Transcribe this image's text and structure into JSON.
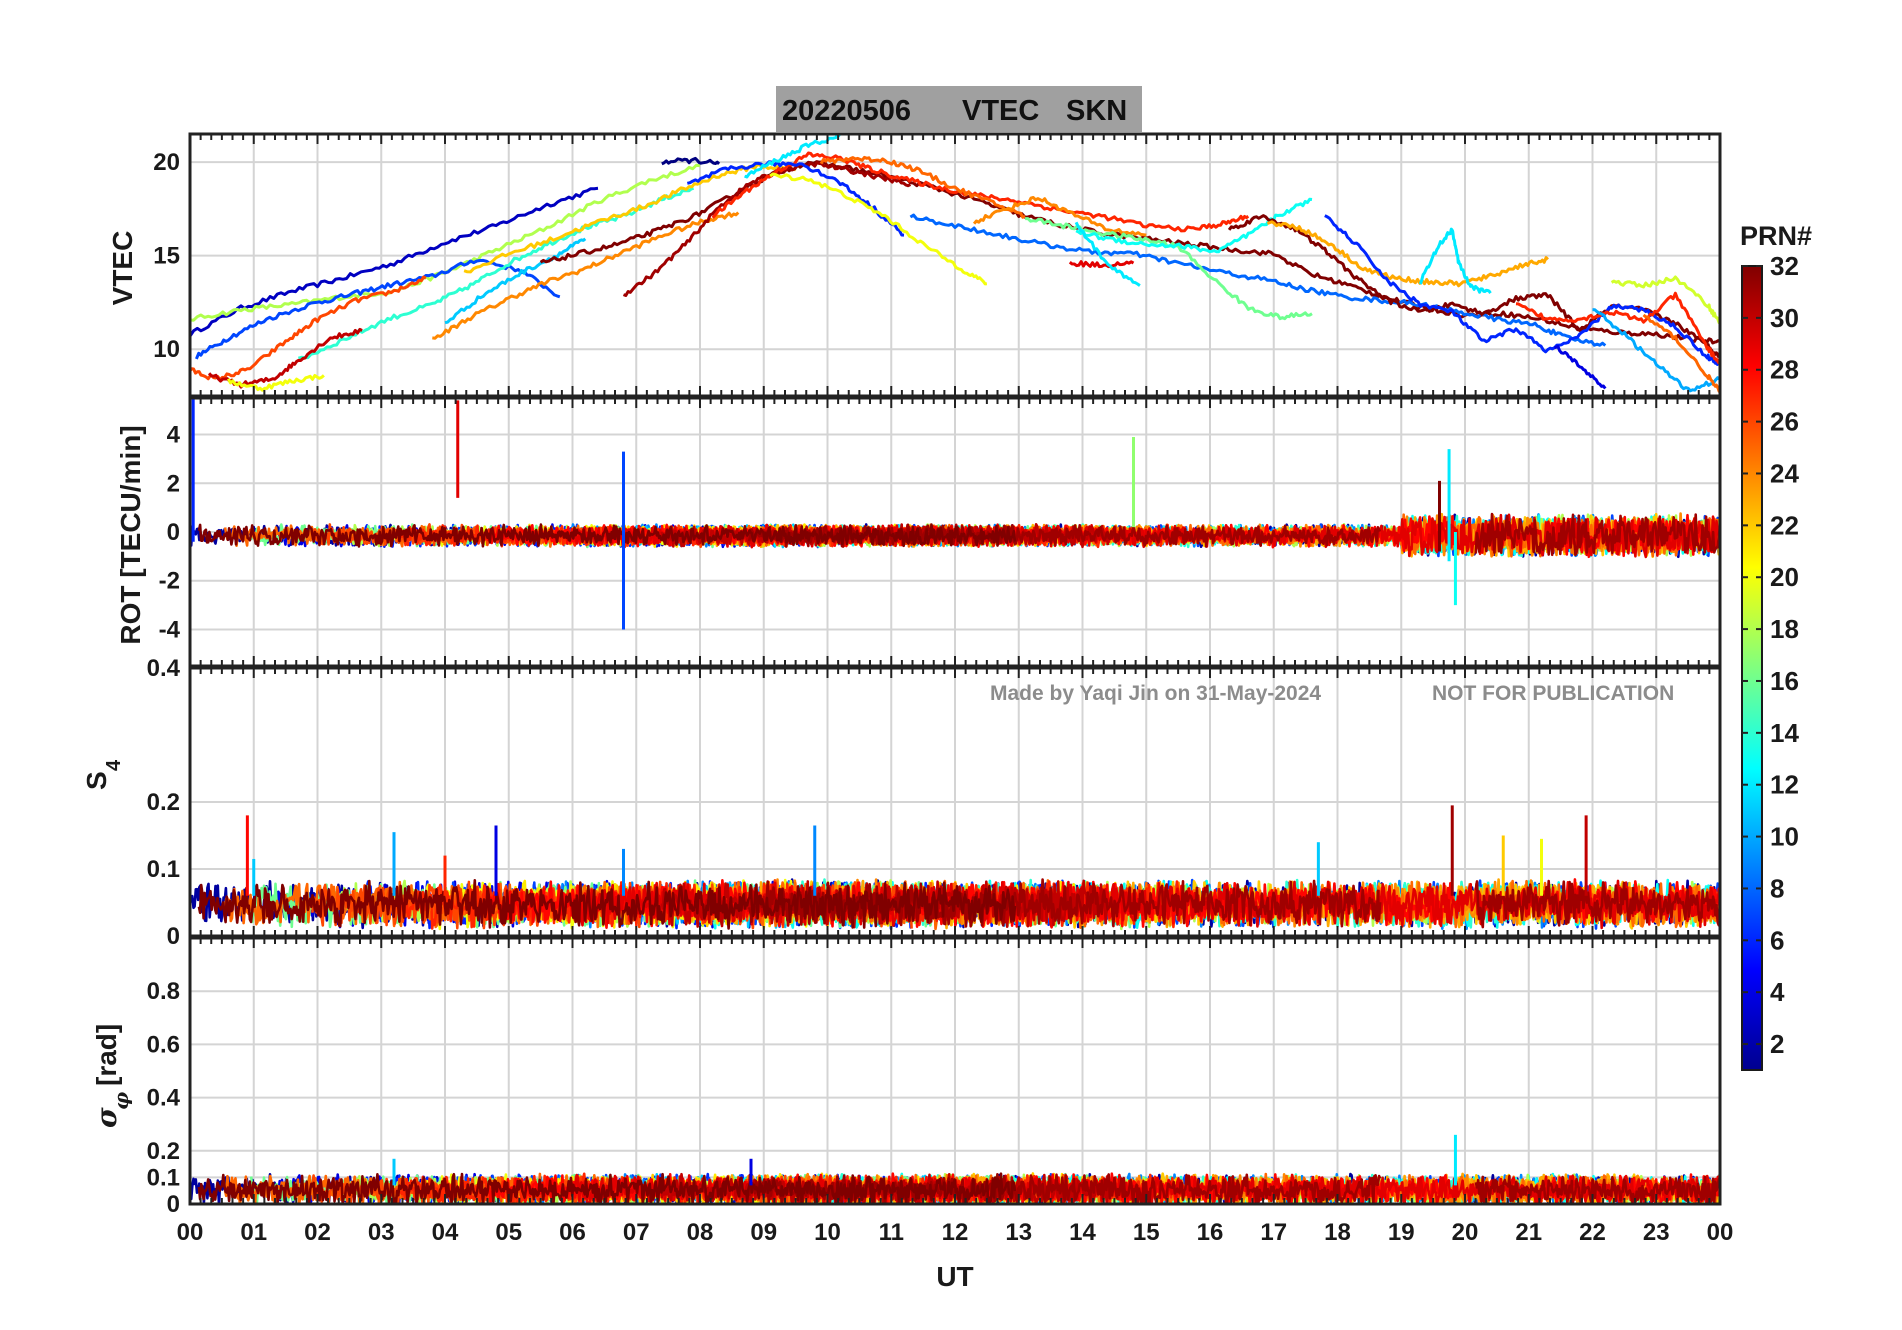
{
  "title": {
    "date": "20220506",
    "quantity": "VTEC",
    "station": "SKN",
    "bg_color": "#a0a0a0"
  },
  "watermark": {
    "made_by": "Made by Yaqi Jin on 31-May-2024",
    "notice": "NOT FOR PUBLICATION"
  },
  "xaxis": {
    "label": "UT",
    "ticks": [
      "00",
      "01",
      "02",
      "03",
      "04",
      "05",
      "06",
      "07",
      "08",
      "09",
      "10",
      "11",
      "12",
      "13",
      "14",
      "15",
      "16",
      "17",
      "18",
      "19",
      "20",
      "21",
      "22",
      "23",
      "00"
    ],
    "range_hours": [
      0,
      24
    ]
  },
  "colorbar": {
    "label": "PRN#",
    "colormap": "jet",
    "range": [
      1,
      32
    ],
    "ticks": [
      "2",
      "4",
      "6",
      "8",
      "10",
      "12",
      "14",
      "16",
      "18",
      "20",
      "22",
      "24",
      "26",
      "28",
      "30",
      "32"
    ]
  },
  "chart_data": [
    {
      "type": "line",
      "panel": "vtec",
      "ylabel": "VTEC",
      "ylim": [
        7.5,
        21.5
      ],
      "yticks": [
        "10",
        "15",
        "20"
      ],
      "yticks_values": [
        10,
        15,
        20
      ],
      "grid": true,
      "series": [
        {
          "prn": 3,
          "x": [
            0.0,
            0.8,
            1.6,
            2.4,
            3.2,
            4.0,
            4.8,
            5.6,
            6.4
          ],
          "y": [
            10.8,
            12.2,
            13.1,
            13.8,
            14.6,
            15.7,
            16.6,
            17.7,
            18.6
          ]
        },
        {
          "prn": 18,
          "x": [
            0.0,
            0.8,
            1.6,
            2.4,
            3.2,
            4.0,
            4.8,
            5.6,
            6.4,
            7.2,
            8.0
          ],
          "y": [
            11.6,
            12.1,
            12.4,
            12.8,
            13.1,
            14.1,
            15.3,
            16.5,
            17.9,
            19.0,
            19.8
          ]
        },
        {
          "prn": 7,
          "x": [
            0.1,
            0.6,
            1.2,
            1.9,
            2.5,
            3.1,
            3.8,
            4.5,
            5.2,
            5.8
          ],
          "y": [
            9.6,
            10.6,
            11.6,
            12.4,
            12.9,
            13.4,
            13.9,
            14.8,
            14.2,
            12.8
          ]
        },
        {
          "prn": 14,
          "x": [
            1.7,
            2.4,
            3.1,
            3.8,
            4.4,
            5.0,
            5.6,
            6.2,
            6.8,
            7.4,
            7.9
          ],
          "y": [
            9.4,
            10.5,
            11.6,
            12.4,
            13.4,
            14.6,
            15.6,
            16.5,
            17.1,
            18.0,
            18.6
          ]
        },
        {
          "prn": 26,
          "x": [
            0.0,
            0.4,
            0.9,
            1.5,
            2.0,
            2.6,
            3.2,
            3.7
          ],
          "y": [
            8.9,
            8.4,
            8.9,
            10.4,
            11.6,
            12.6,
            13.1,
            13.8
          ]
        },
        {
          "prn": 30,
          "x": [
            0.3,
            0.8,
            1.3,
            1.7,
            2.2,
            2.7
          ],
          "y": [
            8.6,
            8.1,
            8.4,
            9.4,
            10.6,
            11.0
          ]
        },
        {
          "prn": 20,
          "x": [
            0.6,
            1.1,
            1.6,
            2.1
          ],
          "y": [
            8.3,
            7.9,
            8.3,
            8.6
          ]
        },
        {
          "prn": 24,
          "x": [
            3.8,
            4.4,
            5.0,
            5.6,
            6.2,
            6.8,
            7.5,
            8.1,
            8.6
          ],
          "y": [
            10.5,
            11.7,
            12.7,
            13.6,
            14.3,
            15.2,
            16.2,
            16.9,
            17.3
          ]
        },
        {
          "prn": 22,
          "x": [
            4.3,
            5.0,
            5.7,
            6.4,
            7.1,
            7.7,
            8.3,
            8.9,
            9.5
          ],
          "y": [
            14.1,
            15.1,
            15.9,
            16.8,
            17.6,
            18.5,
            19.3,
            19.8,
            19.6
          ]
        },
        {
          "prn": 11,
          "x": [
            4.0,
            4.6,
            5.2,
            5.8,
            6.2
          ],
          "y": [
            11.4,
            12.9,
            14.1,
            15.1,
            15.9
          ]
        },
        {
          "prn": 32,
          "x": [
            5.5,
            6.1,
            6.7,
            7.3,
            7.9,
            8.5,
            9.1,
            9.7,
            10.3,
            11.0,
            11.7,
            12.4,
            13.0,
            13.7,
            14.3,
            15.0,
            15.7,
            16.4,
            17.0,
            17.6,
            18.2,
            18.8,
            19.4,
            20.0,
            20.6,
            21.2,
            21.8,
            22.4,
            23.0,
            23.6,
            24.0
          ],
          "y": [
            14.6,
            15.1,
            15.6,
            16.3,
            17.1,
            18.2,
            19.3,
            20.0,
            19.7,
            19.2,
            18.6,
            17.9,
            17.2,
            16.6,
            16.2,
            15.9,
            15.6,
            15.3,
            15.1,
            14.0,
            13.4,
            12.7,
            12.2,
            11.8,
            11.9,
            11.6,
            11.1,
            10.9,
            10.8,
            10.5,
            10.4
          ]
        },
        {
          "prn": 31,
          "x": [
            6.8,
            7.3,
            7.8,
            8.3,
            8.8,
            9.3,
            9.8,
            10.3,
            10.8,
            11.3
          ],
          "y": [
            12.9,
            14.1,
            15.7,
            17.6,
            18.9,
            19.6,
            19.9,
            19.6,
            19.2,
            18.8
          ]
        },
        {
          "prn": 27,
          "x": [
            8.2,
            8.7,
            9.2,
            9.7,
            10.2,
            10.7,
            11.2,
            11.8,
            12.4,
            13.0,
            13.7,
            14.3,
            15.0,
            15.7,
            16.2,
            16.6
          ],
          "y": [
            17.1,
            18.4,
            19.5,
            20.4,
            20.2,
            19.6,
            19.1,
            18.6,
            18.2,
            17.9,
            17.4,
            17.1,
            16.6,
            16.4,
            16.7,
            17.1
          ]
        },
        {
          "prn": 1,
          "x": [
            7.4,
            7.9,
            8.3
          ],
          "y": [
            20.0,
            20.1,
            19.9
          ]
        },
        {
          "prn": 6,
          "x": [
            7.8,
            8.4,
            9.0,
            9.6,
            10.2,
            10.7,
            11.2
          ],
          "y": [
            18.8,
            19.6,
            19.9,
            19.9,
            18.9,
            17.6,
            16.1
          ]
        },
        {
          "prn": 12,
          "x": [
            8.7,
            9.2,
            9.7,
            10.2
          ],
          "y": [
            19.2,
            20.1,
            20.9,
            21.4
          ]
        },
        {
          "prn": 20,
          "x": [
            9.1,
            9.7,
            10.3,
            10.9,
            11.5,
            12.1,
            12.5
          ],
          "y": [
            19.3,
            19.1,
            18.2,
            17.1,
            15.6,
            14.3,
            13.5
          ]
        },
        {
          "prn": 25,
          "x": [
            9.9,
            10.4,
            10.9,
            11.4,
            12.0,
            12.6,
            13.1
          ],
          "y": [
            20.0,
            20.2,
            20.1,
            19.6,
            18.6,
            17.8,
            17.1
          ]
        },
        {
          "prn": 8,
          "x": [
            11.3,
            12.0,
            12.7,
            13.4,
            14.1,
            14.8,
            15.5,
            16.2,
            16.9,
            17.5,
            18.1,
            18.7,
            19.3,
            19.9,
            20.5,
            21.1,
            21.6,
            22.2
          ],
          "y": [
            17.1,
            16.6,
            16.1,
            15.6,
            15.2,
            15.1,
            14.6,
            14.1,
            13.7,
            13.2,
            12.8,
            12.6,
            12.4,
            12.0,
            11.6,
            11.3,
            10.6,
            10.2
          ]
        },
        {
          "prn": 24,
          "x": [
            12.3,
            12.8,
            13.3,
            13.8,
            14.4,
            15.0
          ],
          "y": [
            16.8,
            17.5,
            18.1,
            17.3,
            16.4,
            16.1
          ]
        },
        {
          "prn": 16,
          "x": [
            13.1,
            13.7,
            14.3,
            14.9,
            15.5,
            16.1,
            16.6,
            17.1,
            17.6
          ],
          "y": [
            17.0,
            16.6,
            16.2,
            15.9,
            15.5,
            13.6,
            12.2,
            11.7,
            11.9
          ]
        },
        {
          "prn": 13,
          "x": [
            13.9,
            14.4,
            15.0,
            15.6,
            16.1,
            16.6,
            17.1,
            17.6
          ],
          "y": [
            16.3,
            15.9,
            15.6,
            15.5,
            15.2,
            16.1,
            17.2,
            18.0
          ]
        },
        {
          "prn": 29,
          "x": [
            13.8,
            14.3,
            14.8
          ],
          "y": [
            14.6,
            14.5,
            14.6
          ]
        },
        {
          "prn": 12,
          "x": [
            13.9,
            14.4,
            14.9
          ],
          "y": [
            16.7,
            14.5,
            13.4
          ]
        },
        {
          "prn": 32,
          "x": [
            16.3,
            16.8,
            17.3,
            17.8,
            18.3,
            18.8,
            19.3,
            19.8,
            20.3,
            20.8,
            21.3,
            21.8,
            22.3,
            22.8,
            23.3,
            23.8,
            24.0
          ],
          "y": [
            16.4,
            17.1,
            16.5,
            15.3,
            13.8,
            12.6,
            12.0,
            12.4,
            11.9,
            12.7,
            12.9,
            11.0,
            12.3,
            12.1,
            11.4,
            10.2,
            9.6
          ]
        },
        {
          "prn": 23,
          "x": [
            16.9,
            17.4,
            17.9,
            18.4,
            18.9,
            19.4,
            19.9,
            20.4,
            20.9,
            21.3
          ],
          "y": [
            16.8,
            16.5,
            15.6,
            14.3,
            13.8,
            13.6,
            13.5,
            13.9,
            14.5,
            14.8
          ]
        },
        {
          "prn": 6,
          "x": [
            17.8,
            18.3,
            18.8,
            19.3,
            19.8,
            20.3,
            20.8,
            21.3,
            21.8,
            22.3,
            22.8,
            23.3,
            23.8,
            24.0
          ],
          "y": [
            17.1,
            15.6,
            13.6,
            12.4,
            12.0,
            10.4,
            11.1,
            9.9,
            10.7,
            12.3,
            12.1,
            11.2,
            9.6,
            9.2
          ]
        },
        {
          "prn": 12,
          "x": [
            19.3,
            19.6,
            19.8,
            19.9,
            20.1,
            20.4
          ],
          "y": [
            13.6,
            15.6,
            16.4,
            14.6,
            13.3,
            13.0
          ]
        },
        {
          "prn": 27,
          "x": [
            20.8,
            21.3,
            21.8,
            22.3,
            22.8,
            23.3,
            23.8,
            24.0
          ],
          "y": [
            12.4,
            11.6,
            11.6,
            12.0,
            11.5,
            12.9,
            10.1,
            9.2
          ]
        },
        {
          "prn": 19,
          "x": [
            22.3,
            22.8,
            23.3,
            23.8,
            24.0
          ],
          "y": [
            13.6,
            13.4,
            13.8,
            12.4,
            11.4
          ]
        },
        {
          "prn": 10,
          "x": [
            22.0,
            22.5,
            23.0,
            23.5,
            24.0
          ],
          "y": [
            12.2,
            10.8,
            9.2,
            7.8,
            8.4
          ]
        },
        {
          "prn": 4,
          "x": [
            21.4,
            21.8,
            22.2
          ],
          "y": [
            10.2,
            9.1,
            7.9
          ]
        },
        {
          "prn": 25,
          "x": [
            22.8,
            23.3,
            23.8,
            24.0
          ],
          "y": [
            11.8,
            10.6,
            8.6,
            7.7
          ]
        }
      ]
    },
    {
      "type": "line",
      "panel": "rot",
      "ylabel": "ROT [TECU/min]",
      "ylim": [
        -5.5,
        5.5
      ],
      "yticks": [
        "-4",
        "-2",
        "0",
        "2",
        "4"
      ],
      "yticks_values": [
        -4,
        -2,
        0,
        2,
        4
      ],
      "grid": true,
      "baseline_noise": "ROT stays within about ±0.5 TECU/min for all PRNs; noise grows to about ±1 after 19 UT.",
      "spikes": [
        {
          "prn": 6,
          "x": 0.05,
          "y0": -0.4,
          "y1": 5.5
        },
        {
          "prn": 29,
          "x": 4.2,
          "y0": 1.4,
          "y1": 5.4
        },
        {
          "prn": 7,
          "x": 6.8,
          "y0": -4.0,
          "y1": 3.3
        },
        {
          "prn": 17,
          "x": 14.8,
          "y0": 0.2,
          "y1": 3.9
        },
        {
          "prn": 12,
          "x": 19.75,
          "y0": -1.2,
          "y1": 3.4
        },
        {
          "prn": 13,
          "x": 19.85,
          "y0": -3.0,
          "y1": 0.0
        },
        {
          "prn": 32,
          "x": 19.6,
          "y0": -0.8,
          "y1": 2.1
        }
      ]
    },
    {
      "type": "line",
      "panel": "s4",
      "ylabel": "S4",
      "ylim": [
        0,
        0.4
      ],
      "yticks": [
        "0",
        "0.1",
        "0.2",
        "0.4"
      ],
      "yticks_values": [
        0,
        0.1,
        0.2,
        0.4
      ],
      "grid": true,
      "baseline_range": [
        0.03,
        0.1
      ],
      "spikes": [
        {
          "prn": 28,
          "x": 0.9,
          "y": 0.18
        },
        {
          "prn": 11,
          "x": 1.0,
          "y": 0.115
        },
        {
          "prn": 10,
          "x": 3.2,
          "y": 0.155
        },
        {
          "prn": 4,
          "x": 4.8,
          "y": 0.165
        },
        {
          "prn": 27,
          "x": 4.0,
          "y": 0.12
        },
        {
          "prn": 9,
          "x": 6.8,
          "y": 0.13
        },
        {
          "prn": 9,
          "x": 9.8,
          "y": 0.165
        },
        {
          "prn": 11,
          "x": 17.7,
          "y": 0.14
        },
        {
          "prn": 31,
          "x": 19.8,
          "y": 0.195
        },
        {
          "prn": 22,
          "x": 20.6,
          "y": 0.15
        },
        {
          "prn": 20,
          "x": 21.2,
          "y": 0.145
        },
        {
          "prn": 30,
          "x": 21.9,
          "y": 0.18
        }
      ]
    },
    {
      "type": "line",
      "panel": "sigma_phi",
      "ylabel": "σ φ [rad]",
      "ylim": [
        0,
        1.0
      ],
      "yticks": [
        "0",
        "0.1",
        "0.2",
        "0.4",
        "0.6",
        "0.8"
      ],
      "yticks_values": [
        0,
        0.1,
        0.2,
        0.4,
        0.6,
        0.8
      ],
      "grid": true,
      "baseline_range": [
        0.02,
        0.15
      ],
      "spikes": [
        {
          "prn": 12,
          "x": 19.85,
          "y": 0.26
        },
        {
          "prn": 11,
          "x": 3.2,
          "y": 0.17
        },
        {
          "prn": 4,
          "x": 8.8,
          "y": 0.17
        }
      ]
    }
  ]
}
